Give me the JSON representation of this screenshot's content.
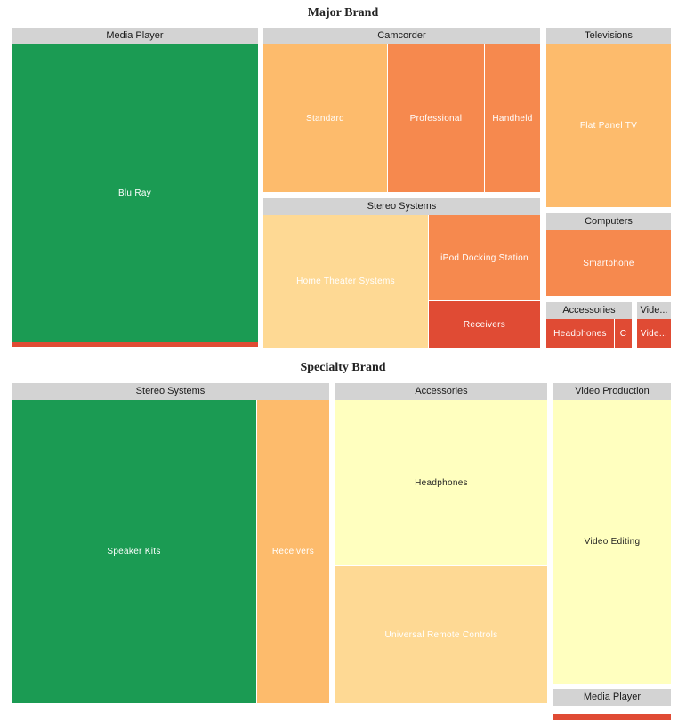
{
  "chart_data": {
    "type": "treemap",
    "colors": {
      "header_bg": "#d3d3d3",
      "green": "#1b9b53",
      "orange_light": "#fdbb6c",
      "orange_mid": "#f6894e",
      "yellow": "#fed994",
      "pale_yellow": "#ffffbf",
      "red": "#e04b34"
    },
    "panels": [
      {
        "title": "Major Brand",
        "groups": [
          {
            "name": "Media Player",
            "children": [
              {
                "name": "Blu Ray",
                "color": "#1b9b53",
                "label_color": "#ffffff"
              },
              {
                "name": "",
                "color": "#e04b34",
                "label_color": "#ffffff"
              }
            ]
          },
          {
            "name": "Camcorder",
            "children": [
              {
                "name": "Standard",
                "color": "#fdbb6c",
                "label_color": "#ffffff"
              },
              {
                "name": "Professional",
                "color": "#f6894e",
                "label_color": "#ffffff"
              },
              {
                "name": "Handheld",
                "color": "#f6894e",
                "label_color": "#ffffff"
              }
            ]
          },
          {
            "name": "Televisions",
            "children": [
              {
                "name": "Flat Panel TV",
                "color": "#fdbb6c",
                "label_color": "#ffffff"
              }
            ]
          },
          {
            "name": "Stereo Systems",
            "children": [
              {
                "name": "Home Theater Systems",
                "color": "#fed994",
                "label_color": "#ffffff"
              },
              {
                "name": "iPod Docking Station",
                "color": "#f6894e",
                "label_color": "#ffffff"
              },
              {
                "name": "Receivers",
                "color": "#e04b34",
                "label_color": "#ffffff"
              }
            ]
          },
          {
            "name": "Computers",
            "children": [
              {
                "name": "Smartphone",
                "color": "#f6894e",
                "label_color": "#ffffff"
              }
            ]
          },
          {
            "name": "Accessories",
            "children": [
              {
                "name": "Headphones",
                "color": "#e04b34",
                "label_color": "#ffffff"
              },
              {
                "name": "C",
                "color": "#e04b34",
                "label_color": "#ffffff"
              }
            ]
          },
          {
            "name": "Vide...",
            "children": [
              {
                "name": "Vide...",
                "color": "#e04b34",
                "label_color": "#ffffff"
              }
            ]
          }
        ]
      },
      {
        "title": "Specialty Brand",
        "groups": [
          {
            "name": "Stereo Systems",
            "children": [
              {
                "name": "Speaker Kits",
                "color": "#1b9b53",
                "label_color": "#ffffff"
              },
              {
                "name": "Receivers",
                "color": "#fdbb6c",
                "label_color": "#ffffff"
              }
            ]
          },
          {
            "name": "Accessories",
            "children": [
              {
                "name": "Headphones",
                "color": "#ffffbf",
                "label_color": "#222222"
              },
              {
                "name": "Universal Remote Controls",
                "color": "#fed994",
                "label_color": "#ffffff"
              }
            ]
          },
          {
            "name": "Video Production",
            "children": [
              {
                "name": "Video Editing",
                "color": "#ffffbf",
                "label_color": "#222222"
              }
            ]
          },
          {
            "name": "Media Player",
            "children": [
              {
                "name": "",
                "color": "#e04b34",
                "label_color": "#ffffff"
              }
            ]
          }
        ]
      }
    ]
  }
}
